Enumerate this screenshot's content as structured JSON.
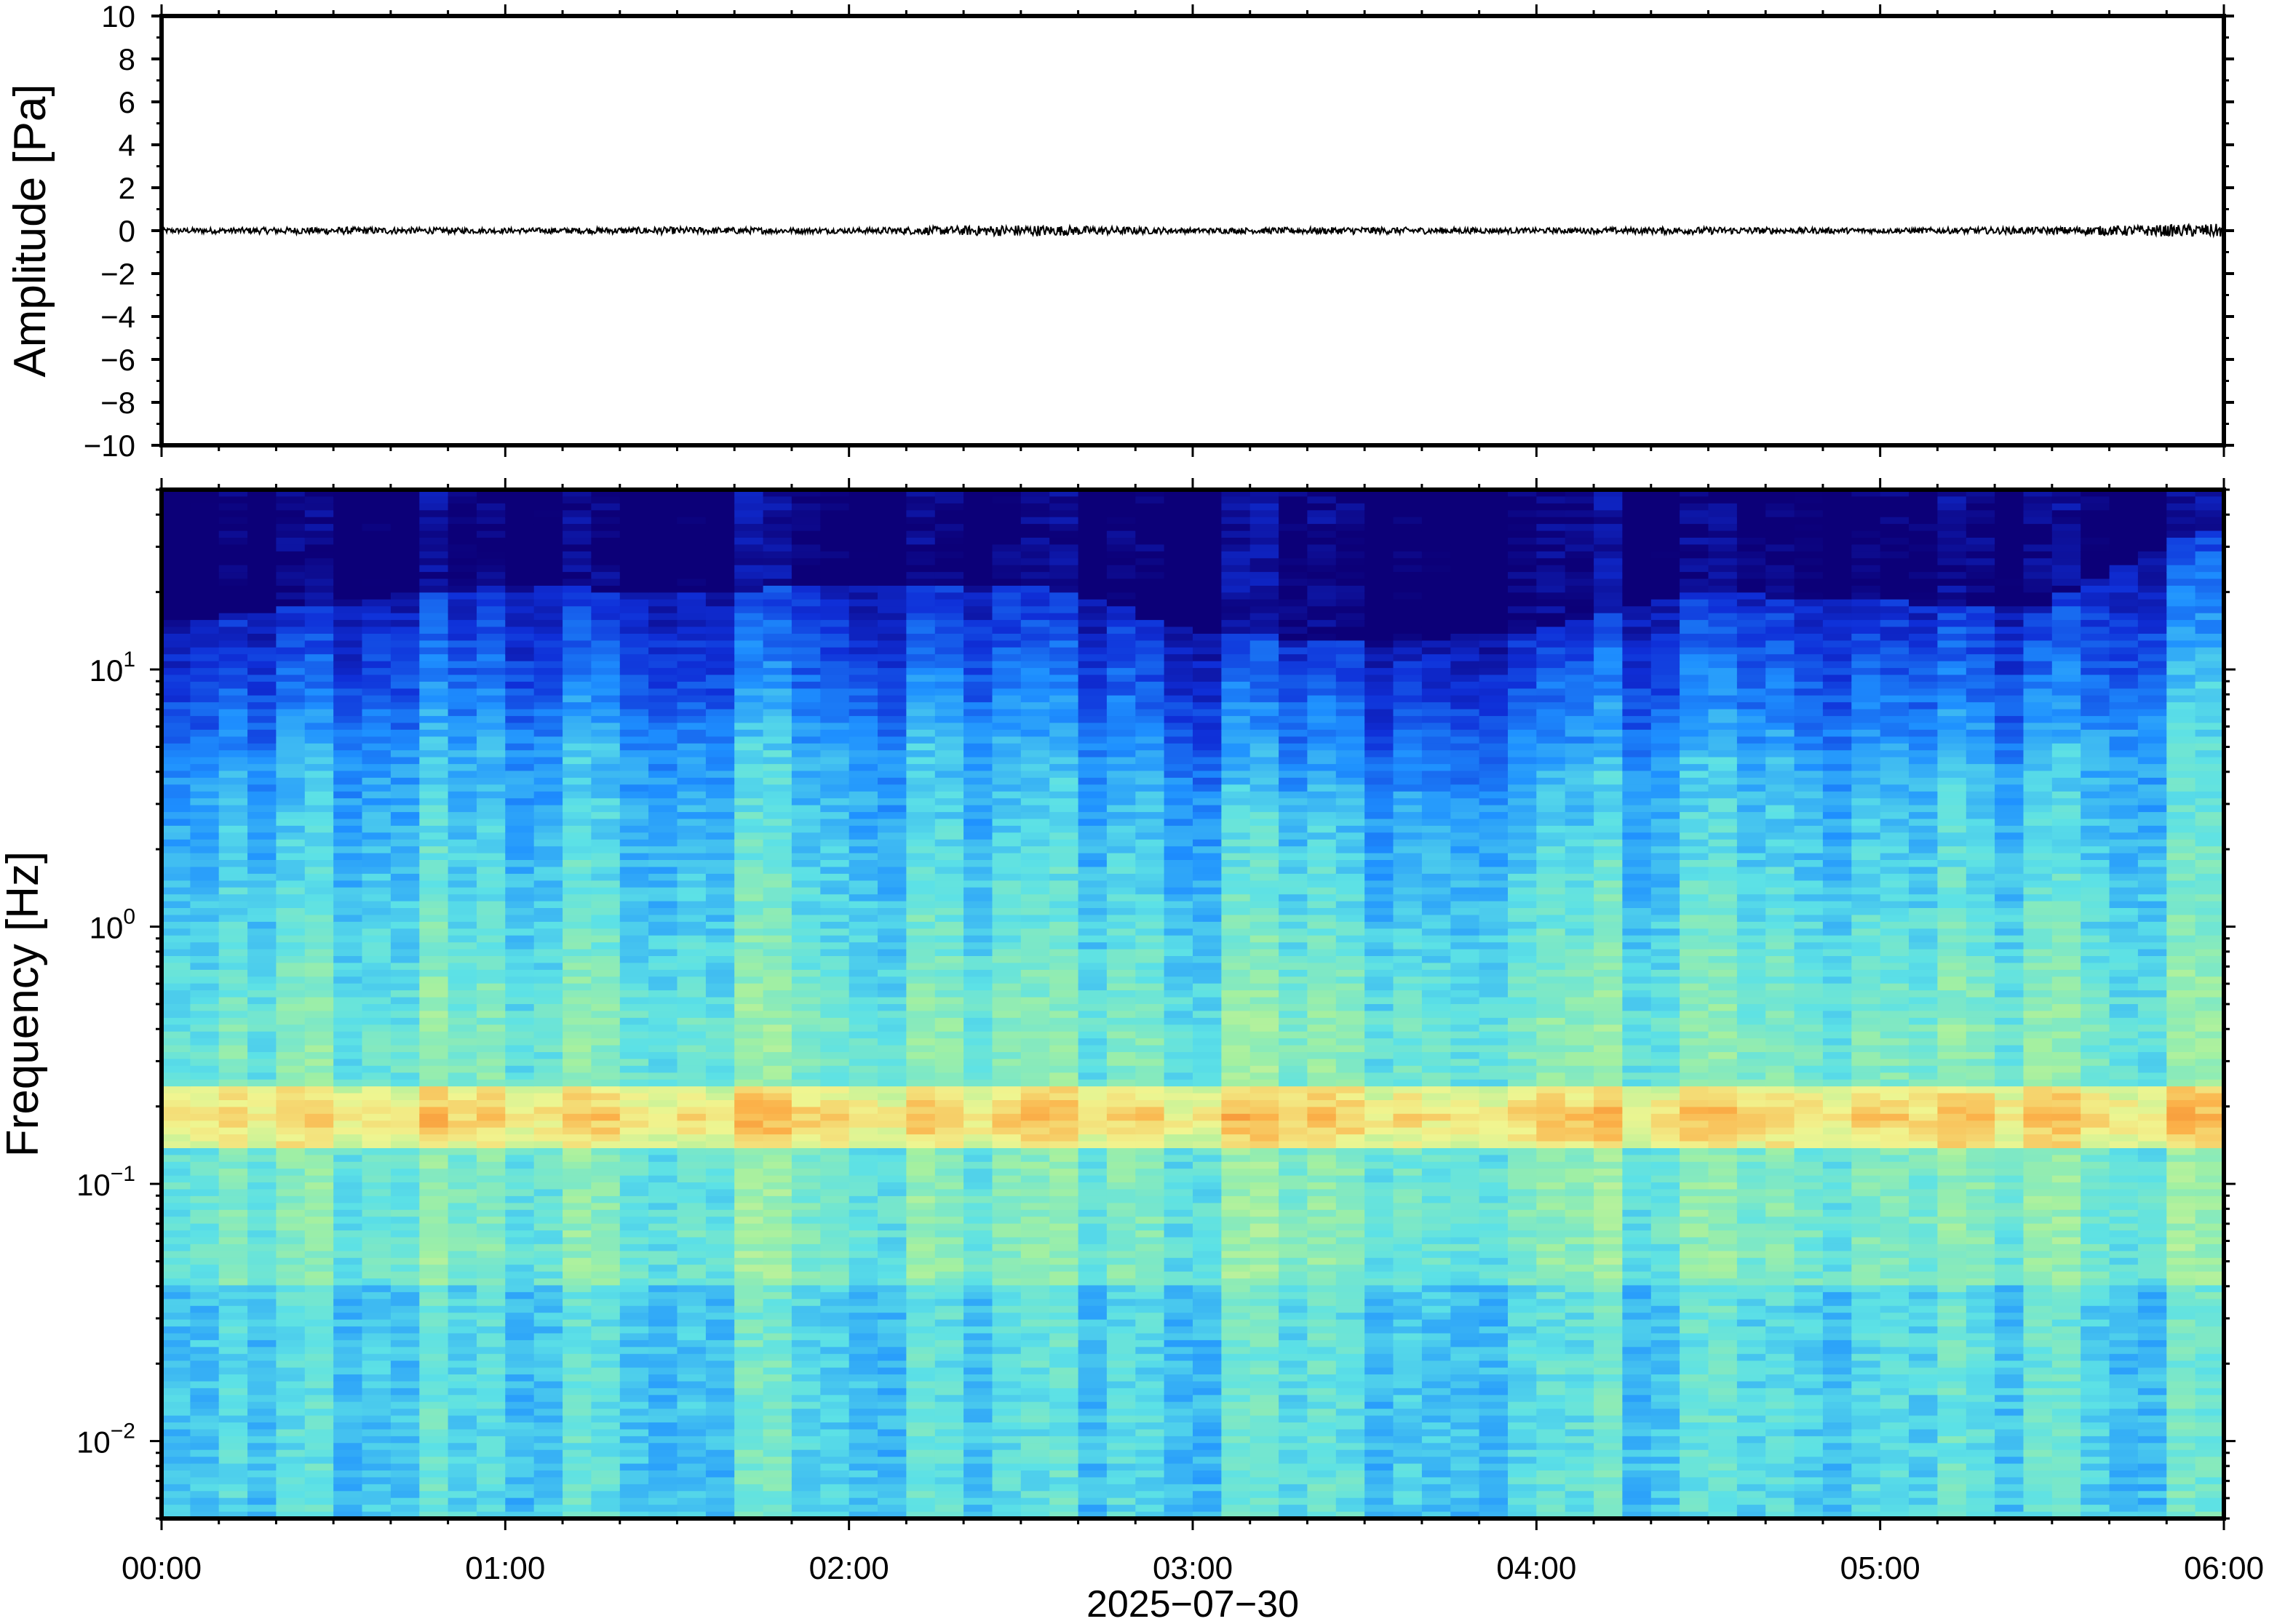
{
  "chart_data": [
    {
      "type": "line",
      "ylabel": "Amplitude [Pa]",
      "ylim": [
        -10,
        10
      ],
      "yticks": [
        10,
        8,
        6,
        4,
        2,
        0,
        -2,
        -4,
        -6,
        -8,
        -10
      ],
      "ytick_labels": [
        "10",
        "8",
        "6",
        "4",
        "2",
        "0",
        "−2",
        "−4",
        "−6",
        "−8",
        "−10"
      ],
      "x_range": [
        "00:00",
        "06:00"
      ],
      "series": [
        {
          "x": [
            "00:00",
            "00:30",
            "01:00",
            "01:30",
            "02:00",
            "02:30",
            "03:00",
            "03:30",
            "04:00",
            "04:30",
            "05:00",
            "05:30",
            "06:00"
          ],
          "y": [
            0.0,
            0.05,
            0.0,
            0.05,
            0.0,
            0.15,
            0.0,
            0.05,
            0.0,
            0.05,
            0.0,
            0.05,
            0.2
          ],
          "noise_amplitude": 0.12,
          "color": "#000000"
        }
      ],
      "grid": false
    },
    {
      "type": "heatmap",
      "ylabel": "Frequency [Hz]",
      "xlabel": "2025−07−30",
      "y_scale": "log",
      "ylim": [
        0.005,
        50
      ],
      "yticks": [
        10,
        1,
        0.1,
        0.01
      ],
      "ytick_labels": [
        {
          "base": "10",
          "exp": "1"
        },
        {
          "base": "10",
          "exp": "0"
        },
        {
          "base": "10",
          "exp": "−1"
        },
        {
          "base": "10",
          "exp": "−2"
        }
      ],
      "xticks": [
        "00:00",
        "01:00",
        "02:00",
        "03:00",
        "04:00",
        "05:00",
        "06:00"
      ],
      "colormap": [
        "#0c0078",
        "#0f2fd8",
        "#1e90ff",
        "#5ce1e6",
        "#a4f0a0",
        "#f0f590",
        "#fbb24a",
        "#f07020"
      ],
      "features": {
        "noise_ceiling_hz": [
          11,
          13,
          15,
          14,
          15,
          15,
          10,
          9,
          10,
          14,
          13,
          12,
          25
        ],
        "microseism_band_hz": [
          0.15,
          0.22
        ],
        "time_columns": 72
      },
      "grid": false
    }
  ]
}
